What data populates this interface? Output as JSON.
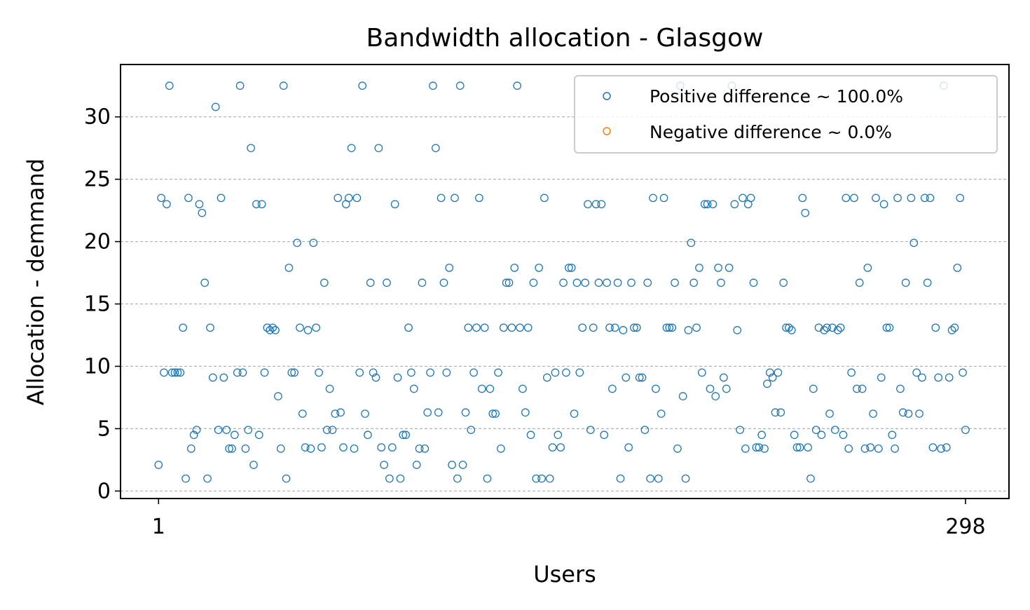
{
  "chart_data": {
    "type": "scatter",
    "title": "Bandwidth allocation - Glasgow",
    "xlabel": "Users",
    "ylabel": "Allocation - demmand",
    "xlim": [
      -13,
      314
    ],
    "ylim": [
      -0.6,
      34.2
    ],
    "x_ticks": [
      1,
      298
    ],
    "x_tick_labels": [
      "1",
      "298"
    ],
    "y_ticks": [
      0,
      5,
      10,
      15,
      20,
      25,
      30
    ],
    "y_tick_labels": [
      "0",
      "5",
      "10",
      "15",
      "20",
      "25",
      "30"
    ],
    "grid": "horizontal dashed",
    "legend_position": "top-right",
    "series": [
      {
        "name": "Positive difference ~ 100.0%",
        "color": "#1f77b4",
        "marker": "open-circle",
        "values": [
          [
            1,
            2.1
          ],
          [
            2,
            23.5
          ],
          [
            3,
            9.5
          ],
          [
            4,
            23.0
          ],
          [
            5,
            32.5
          ],
          [
            6,
            9.5
          ],
          [
            7,
            9.5
          ],
          [
            8,
            9.5
          ],
          [
            9,
            9.5
          ],
          [
            10,
            13.1
          ],
          [
            11,
            1.0
          ],
          [
            12,
            23.5
          ],
          [
            13,
            3.4
          ],
          [
            14,
            4.5
          ],
          [
            15,
            4.9
          ],
          [
            16,
            23.0
          ],
          [
            17,
            22.3
          ],
          [
            18,
            16.7
          ],
          [
            19,
            1.0
          ],
          [
            20,
            13.1
          ],
          [
            21,
            9.1
          ],
          [
            22,
            30.8
          ],
          [
            23,
            4.9
          ],
          [
            24,
            23.5
          ],
          [
            25,
            9.1
          ],
          [
            26,
            4.9
          ],
          [
            27,
            3.4
          ],
          [
            28,
            3.4
          ],
          [
            29,
            4.5
          ],
          [
            30,
            9.5
          ],
          [
            31,
            32.5
          ],
          [
            32,
            9.5
          ],
          [
            33,
            3.4
          ],
          [
            34,
            4.9
          ],
          [
            35,
            27.5
          ],
          [
            36,
            2.1
          ],
          [
            37,
            23.0
          ],
          [
            38,
            4.5
          ],
          [
            39,
            23.0
          ],
          [
            40,
            9.5
          ],
          [
            41,
            13.1
          ],
          [
            42,
            12.9
          ],
          [
            43,
            13.1
          ],
          [
            44,
            12.9
          ],
          [
            45,
            7.6
          ],
          [
            46,
            3.4
          ],
          [
            47,
            32.5
          ],
          [
            48,
            1.0
          ],
          [
            49,
            17.9
          ],
          [
            50,
            9.5
          ],
          [
            51,
            9.5
          ],
          [
            52,
            19.9
          ],
          [
            53,
            13.1
          ],
          [
            54,
            6.2
          ],
          [
            55,
            3.5
          ],
          [
            56,
            12.9
          ],
          [
            57,
            3.4
          ],
          [
            58,
            19.9
          ],
          [
            59,
            13.1
          ],
          [
            60,
            9.5
          ],
          [
            61,
            3.5
          ],
          [
            62,
            16.7
          ],
          [
            63,
            4.9
          ],
          [
            64,
            8.2
          ],
          [
            65,
            4.9
          ],
          [
            66,
            6.2
          ],
          [
            67,
            23.5
          ],
          [
            68,
            6.3
          ],
          [
            69,
            3.5
          ],
          [
            70,
            23.0
          ],
          [
            71,
            23.5
          ],
          [
            72,
            27.5
          ],
          [
            73,
            3.4
          ],
          [
            74,
            23.5
          ],
          [
            75,
            9.5
          ],
          [
            76,
            32.5
          ],
          [
            77,
            6.2
          ],
          [
            78,
            4.5
          ],
          [
            79,
            16.7
          ],
          [
            80,
            9.5
          ],
          [
            81,
            9.1
          ],
          [
            82,
            27.5
          ],
          [
            83,
            3.5
          ],
          [
            84,
            2.1
          ],
          [
            85,
            16.7
          ],
          [
            86,
            1.0
          ],
          [
            87,
            3.5
          ],
          [
            88,
            23.0
          ],
          [
            89,
            9.1
          ],
          [
            90,
            1.0
          ],
          [
            91,
            4.5
          ],
          [
            92,
            4.5
          ],
          [
            93,
            13.1
          ],
          [
            94,
            9.5
          ],
          [
            95,
            8.2
          ],
          [
            96,
            2.1
          ],
          [
            97,
            3.4
          ],
          [
            98,
            16.7
          ],
          [
            99,
            3.4
          ],
          [
            100,
            6.3
          ],
          [
            101,
            9.5
          ],
          [
            102,
            32.5
          ],
          [
            103,
            27.5
          ],
          [
            104,
            6.3
          ],
          [
            105,
            23.5
          ],
          [
            106,
            16.7
          ],
          [
            107,
            9.5
          ],
          [
            108,
            17.9
          ],
          [
            109,
            2.1
          ],
          [
            110,
            23.5
          ],
          [
            111,
            1.0
          ],
          [
            112,
            32.5
          ],
          [
            113,
            2.1
          ],
          [
            114,
            6.3
          ],
          [
            115,
            13.1
          ],
          [
            116,
            4.9
          ],
          [
            117,
            9.5
          ],
          [
            118,
            13.1
          ],
          [
            119,
            23.5
          ],
          [
            120,
            8.2
          ],
          [
            121,
            13.1
          ],
          [
            122,
            1.0
          ],
          [
            123,
            8.2
          ],
          [
            124,
            6.2
          ],
          [
            125,
            6.2
          ],
          [
            126,
            9.5
          ],
          [
            127,
            3.4
          ],
          [
            128,
            13.1
          ],
          [
            129,
            16.7
          ],
          [
            130,
            16.7
          ],
          [
            131,
            13.1
          ],
          [
            132,
            17.9
          ],
          [
            133,
            32.5
          ],
          [
            134,
            13.1
          ],
          [
            135,
            8.2
          ],
          [
            136,
            6.3
          ],
          [
            137,
            13.1
          ],
          [
            138,
            4.5
          ],
          [
            139,
            16.7
          ],
          [
            140,
            1.0
          ],
          [
            141,
            17.9
          ],
          [
            142,
            1.0
          ],
          [
            143,
            23.5
          ],
          [
            144,
            9.1
          ],
          [
            145,
            1.0
          ],
          [
            146,
            3.5
          ],
          [
            147,
            9.5
          ],
          [
            148,
            4.5
          ],
          [
            149,
            3.5
          ],
          [
            150,
            16.7
          ],
          [
            151,
            9.5
          ],
          [
            152,
            17.9
          ],
          [
            153,
            17.9
          ],
          [
            154,
            6.2
          ],
          [
            155,
            16.7
          ],
          [
            156,
            9.5
          ],
          [
            157,
            13.1
          ],
          [
            158,
            16.7
          ],
          [
            159,
            23.0
          ],
          [
            160,
            4.9
          ],
          [
            161,
            13.1
          ],
          [
            162,
            23.0
          ],
          [
            163,
            16.7
          ],
          [
            164,
            23.0
          ],
          [
            165,
            4.5
          ],
          [
            166,
            16.7
          ],
          [
            167,
            13.1
          ],
          [
            168,
            8.2
          ],
          [
            169,
            13.1
          ],
          [
            170,
            16.7
          ],
          [
            171,
            1.0
          ],
          [
            172,
            12.9
          ],
          [
            173,
            9.1
          ],
          [
            174,
            3.5
          ],
          [
            175,
            16.7
          ],
          [
            176,
            13.1
          ],
          [
            177,
            13.1
          ],
          [
            178,
            9.1
          ],
          [
            179,
            9.1
          ],
          [
            180,
            4.9
          ],
          [
            181,
            16.7
          ],
          [
            182,
            1.0
          ],
          [
            183,
            23.5
          ],
          [
            184,
            8.2
          ],
          [
            185,
            1.0
          ],
          [
            186,
            6.2
          ],
          [
            187,
            23.5
          ],
          [
            188,
            13.1
          ],
          [
            189,
            13.1
          ],
          [
            190,
            13.1
          ],
          [
            191,
            16.7
          ],
          [
            192,
            3.4
          ],
          [
            193,
            32.5
          ],
          [
            194,
            7.6
          ],
          [
            195,
            1.0
          ],
          [
            196,
            12.9
          ],
          [
            197,
            19.9
          ],
          [
            198,
            16.7
          ],
          [
            199,
            13.1
          ],
          [
            200,
            17.9
          ],
          [
            201,
            9.5
          ],
          [
            202,
            23.0
          ],
          [
            203,
            23.0
          ],
          [
            204,
            8.2
          ],
          [
            205,
            23.0
          ],
          [
            206,
            7.6
          ],
          [
            207,
            17.9
          ],
          [
            208,
            16.7
          ],
          [
            209,
            9.1
          ],
          [
            210,
            8.2
          ],
          [
            211,
            17.9
          ],
          [
            212,
            32.5
          ],
          [
            213,
            23.0
          ],
          [
            214,
            12.9
          ],
          [
            215,
            4.9
          ],
          [
            216,
            23.5
          ],
          [
            217,
            3.4
          ],
          [
            218,
            23.0
          ],
          [
            219,
            23.5
          ],
          [
            220,
            16.7
          ],
          [
            221,
            3.5
          ],
          [
            222,
            3.5
          ],
          [
            223,
            4.5
          ],
          [
            224,
            3.4
          ],
          [
            225,
            8.6
          ],
          [
            226,
            9.5
          ],
          [
            227,
            9.1
          ],
          [
            228,
            6.3
          ],
          [
            229,
            9.5
          ],
          [
            230,
            6.3
          ],
          [
            231,
            16.7
          ],
          [
            232,
            13.1
          ],
          [
            233,
            13.1
          ],
          [
            234,
            12.9
          ],
          [
            235,
            4.5
          ],
          [
            236,
            3.5
          ],
          [
            237,
            3.5
          ],
          [
            238,
            23.5
          ],
          [
            239,
            22.3
          ],
          [
            240,
            3.5
          ],
          [
            241,
            1.0
          ],
          [
            242,
            8.2
          ],
          [
            243,
            4.9
          ],
          [
            244,
            13.1
          ],
          [
            245,
            4.5
          ],
          [
            246,
            12.9
          ],
          [
            247,
            13.1
          ],
          [
            248,
            6.2
          ],
          [
            249,
            13.1
          ],
          [
            250,
            4.9
          ],
          [
            251,
            12.9
          ],
          [
            252,
            13.1
          ],
          [
            253,
            4.5
          ],
          [
            254,
            23.5
          ],
          [
            255,
            3.4
          ],
          [
            256,
            9.5
          ],
          [
            257,
            23.5
          ],
          [
            258,
            8.2
          ],
          [
            259,
            16.7
          ],
          [
            260,
            8.2
          ],
          [
            261,
            3.4
          ],
          [
            262,
            17.9
          ],
          [
            263,
            3.5
          ],
          [
            264,
            6.2
          ],
          [
            265,
            23.5
          ],
          [
            266,
            3.4
          ],
          [
            267,
            9.1
          ],
          [
            268,
            23.0
          ],
          [
            269,
            13.1
          ],
          [
            270,
            13.1
          ],
          [
            271,
            4.5
          ],
          [
            272,
            3.4
          ],
          [
            273,
            23.5
          ],
          [
            274,
            8.2
          ],
          [
            275,
            6.3
          ],
          [
            276,
            16.7
          ],
          [
            277,
            6.2
          ],
          [
            278,
            23.5
          ],
          [
            279,
            19.9
          ],
          [
            280,
            9.5
          ],
          [
            281,
            6.2
          ],
          [
            282,
            9.1
          ],
          [
            283,
            23.5
          ],
          [
            284,
            16.7
          ],
          [
            285,
            23.5
          ],
          [
            286,
            3.5
          ],
          [
            287,
            13.1
          ],
          [
            288,
            9.1
          ],
          [
            289,
            3.4
          ],
          [
            290,
            32.5
          ],
          [
            291,
            3.5
          ],
          [
            292,
            9.1
          ],
          [
            293,
            12.9
          ],
          [
            294,
            13.1
          ],
          [
            295,
            17.9
          ],
          [
            296,
            23.5
          ],
          [
            297,
            9.5
          ],
          [
            298,
            4.9
          ]
        ]
      },
      {
        "name": "Negative difference ~ 0.0%",
        "color": "#ff7f0e",
        "marker": "open-circle",
        "values": []
      }
    ]
  }
}
